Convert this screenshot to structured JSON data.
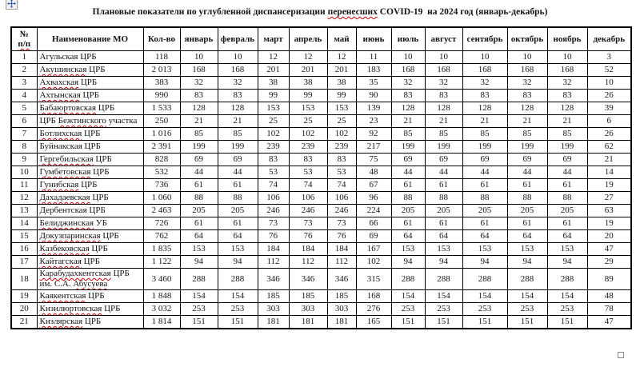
{
  "document": {
    "title": {
      "pre": "Плановые показатели по углубленной диспансеризации ",
      "flagged": "перенесших",
      "post": " COVID-19  на 2024 год (январь-декабрь)"
    }
  },
  "icons": {
    "move_handle": "table-move-cross",
    "resize_handle": "table-resize-square"
  },
  "colors": {
    "spellcheck_underline": "#cc0000",
    "table_border": "#000000",
    "move_cross": "#3c5ea8",
    "page_background": "#ffffff"
  },
  "table": {
    "header": {
      "num_line1": "№",
      "num_line2": "п/п",
      "name": "Наименование МО",
      "total": "Кол-во",
      "months": [
        "январь",
        "февраль",
        "март",
        "апрель",
        "май",
        "июнь",
        "июль",
        "август",
        "сентябрь",
        "октябрь",
        "ноябрь",
        "декабрь"
      ]
    },
    "rows": [
      {
        "num": "1",
        "name_parts": [
          {
            "t": "Агульская ЦРБ",
            "f": false
          }
        ],
        "total": "118",
        "months": [
          "10",
          "10",
          "12",
          "12",
          "12",
          "11",
          "10",
          "10",
          "10",
          "10",
          "10",
          "3"
        ]
      },
      {
        "num": "2",
        "name_parts": [
          {
            "t": "Акушинская",
            "f": true
          },
          {
            "t": " ЦРБ",
            "f": false
          }
        ],
        "total": "2 013",
        "months": [
          "168",
          "168",
          "201",
          "201",
          "201",
          "183",
          "168",
          "168",
          "168",
          "168",
          "168",
          "52"
        ]
      },
      {
        "num": "3",
        "name_parts": [
          {
            "t": "Ахвахская",
            "f": true
          },
          {
            "t": " ЦРБ",
            "f": false
          }
        ],
        "total": "383",
        "months": [
          "32",
          "32",
          "38",
          "38",
          "38",
          "35",
          "32",
          "32",
          "32",
          "32",
          "32",
          "10"
        ]
      },
      {
        "num": "4",
        "name_parts": [
          {
            "t": "Ахтынская",
            "f": true
          },
          {
            "t": " ЦРБ",
            "f": false
          }
        ],
        "total": "990",
        "months": [
          "83",
          "83",
          "99",
          "99",
          "99",
          "90",
          "83",
          "83",
          "83",
          "83",
          "83",
          "26"
        ]
      },
      {
        "num": "5",
        "name_parts": [
          {
            "t": "Бабаюртовская",
            "f": true
          },
          {
            "t": " ЦРБ",
            "f": false
          }
        ],
        "total": "1 533",
        "months": [
          "128",
          "128",
          "153",
          "153",
          "153",
          "139",
          "128",
          "128",
          "128",
          "128",
          "128",
          "39"
        ]
      },
      {
        "num": "6",
        "name_parts": [
          {
            "t": "ЦРБ ",
            "f": false
          },
          {
            "t": "Бежтинского",
            "f": true
          },
          {
            "t": " участка",
            "f": false
          }
        ],
        "total": "250",
        "months": [
          "21",
          "21",
          "25",
          "25",
          "25",
          "23",
          "21",
          "21",
          "21",
          "21",
          "21",
          "6"
        ]
      },
      {
        "num": "7",
        "name_parts": [
          {
            "t": "Ботлихская",
            "f": true
          },
          {
            "t": " ЦРБ",
            "f": false
          }
        ],
        "total": "1 016",
        "months": [
          "85",
          "85",
          "102",
          "102",
          "102",
          "92",
          "85",
          "85",
          "85",
          "85",
          "85",
          "26"
        ]
      },
      {
        "num": "8",
        "name_parts": [
          {
            "t": "Буйнакская ЦРБ",
            "f": false
          }
        ],
        "total": "2 391",
        "months": [
          "199",
          "199",
          "239",
          "239",
          "239",
          "217",
          "199",
          "199",
          "199",
          "199",
          "199",
          "62"
        ]
      },
      {
        "num": "9",
        "name_parts": [
          {
            "t": "Гергебильская",
            "f": true
          },
          {
            "t": " ЦРБ",
            "f": false
          }
        ],
        "total": "828",
        "months": [
          "69",
          "69",
          "83",
          "83",
          "83",
          "75",
          "69",
          "69",
          "69",
          "69",
          "69",
          "21"
        ]
      },
      {
        "num": "10",
        "name_parts": [
          {
            "t": "Гумбетовская",
            "f": true
          },
          {
            "t": " ЦРБ",
            "f": false
          }
        ],
        "total": "532",
        "months": [
          "44",
          "44",
          "53",
          "53",
          "53",
          "48",
          "44",
          "44",
          "44",
          "44",
          "44",
          "14"
        ]
      },
      {
        "num": "11",
        "name_parts": [
          {
            "t": "Гунибская",
            "f": true
          },
          {
            "t": " ЦРБ",
            "f": false
          }
        ],
        "total": "736",
        "months": [
          "61",
          "61",
          "74",
          "74",
          "74",
          "67",
          "61",
          "61",
          "61",
          "61",
          "61",
          "19"
        ]
      },
      {
        "num": "12",
        "name_parts": [
          {
            "t": "Дахадаевская",
            "f": true
          },
          {
            "t": " ЦРБ",
            "f": false
          }
        ],
        "total": "1 060",
        "months": [
          "88",
          "88",
          "106",
          "106",
          "106",
          "96",
          "88",
          "88",
          "88",
          "88",
          "88",
          "27"
        ]
      },
      {
        "num": "13",
        "name_parts": [
          {
            "t": "Дербентская ЦРБ",
            "f": false
          }
        ],
        "total": "2 463",
        "months": [
          "205",
          "205",
          "246",
          "246",
          "246",
          "224",
          "205",
          "205",
          "205",
          "205",
          "205",
          "63"
        ]
      },
      {
        "num": "14",
        "name_parts": [
          {
            "t": "Белиджинская",
            "f": true
          },
          {
            "t": " УБ",
            "f": false
          }
        ],
        "total": "726",
        "months": [
          "61",
          "61",
          "73",
          "73",
          "73",
          "66",
          "61",
          "61",
          "61",
          "61",
          "61",
          "19"
        ]
      },
      {
        "num": "15",
        "name_parts": [
          {
            "t": "Докузпаринская",
            "f": true
          },
          {
            "t": " ЦРБ",
            "f": false
          }
        ],
        "total": "762",
        "months": [
          "64",
          "64",
          "76",
          "76",
          "76",
          "69",
          "64",
          "64",
          "64",
          "64",
          "64",
          "20"
        ]
      },
      {
        "num": "16",
        "name_parts": [
          {
            "t": "Казбековская",
            "f": true
          },
          {
            "t": " ЦРБ",
            "f": false
          }
        ],
        "total": "1 835",
        "months": [
          "153",
          "153",
          "184",
          "184",
          "184",
          "167",
          "153",
          "153",
          "153",
          "153",
          "153",
          "47"
        ]
      },
      {
        "num": "17",
        "name_parts": [
          {
            "t": "Кайтагская",
            "f": true
          },
          {
            "t": " ЦРБ",
            "f": false
          }
        ],
        "total": "1 122",
        "months": [
          "94",
          "94",
          "112",
          "112",
          "112",
          "102",
          "94",
          "94",
          "94",
          "94",
          "94",
          "29"
        ]
      },
      {
        "num": "18",
        "name_parts": [
          {
            "t": "Карабудахкентская",
            "f": true
          },
          {
            "t": " ЦРБ им. С.А. ",
            "f": false
          },
          {
            "t": "Абусуева",
            "f": true
          }
        ],
        "total": "3 460",
        "months": [
          "288",
          "288",
          "346",
          "346",
          "346",
          "315",
          "288",
          "288",
          "288",
          "288",
          "288",
          "89"
        ]
      },
      {
        "num": "19",
        "name_parts": [
          {
            "t": "Каякентская",
            "f": true
          },
          {
            "t": " ЦРБ",
            "f": false
          }
        ],
        "total": "1 848",
        "months": [
          "154",
          "154",
          "185",
          "185",
          "185",
          "168",
          "154",
          "154",
          "154",
          "154",
          "154",
          "48"
        ]
      },
      {
        "num": "20",
        "name_parts": [
          {
            "t": "Кизилюртовская",
            "f": true
          },
          {
            "t": " ЦРБ",
            "f": false
          }
        ],
        "total": "3 032",
        "months": [
          "253",
          "253",
          "303",
          "303",
          "303",
          "276",
          "253",
          "253",
          "253",
          "253",
          "253",
          "78"
        ]
      },
      {
        "num": "21",
        "name_parts": [
          {
            "t": "Кизлярская",
            "f": true
          },
          {
            "t": " ЦРБ",
            "f": false
          }
        ],
        "total": "1 814",
        "months": [
          "151",
          "151",
          "181",
          "181",
          "181",
          "165",
          "151",
          "151",
          "151",
          "151",
          "151",
          "47"
        ]
      }
    ]
  }
}
